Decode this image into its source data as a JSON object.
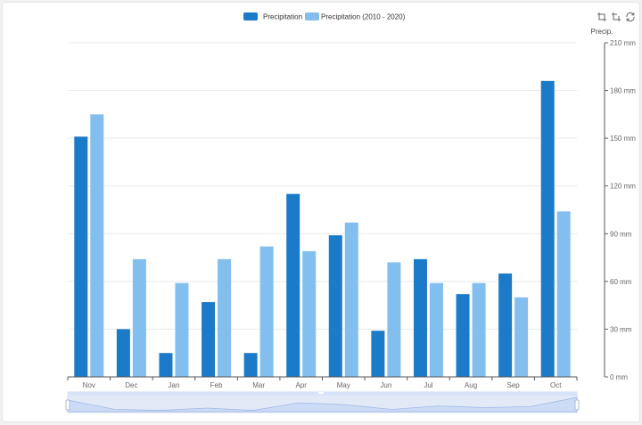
{
  "chart_data": {
    "type": "bar",
    "categories": [
      "Nov",
      "Dec",
      "Jan",
      "Feb",
      "Mar",
      "Apr",
      "May",
      "Jun",
      "Jul",
      "Aug",
      "Sep",
      "Oct"
    ],
    "series": [
      {
        "name": "Precipitation",
        "color": "#1b7bc8",
        "values": [
          151,
          30,
          15,
          47,
          15,
          115,
          89,
          29,
          74,
          52,
          65,
          186
        ]
      },
      {
        "name": "Precipitation (2010 - 2020)",
        "color": "#82bfee",
        "values": [
          165,
          74,
          59,
          74,
          82,
          79,
          97,
          72,
          59,
          59,
          50,
          104
        ]
      }
    ],
    "ylabel": "Precip.",
    "y_ticks": [
      "0 mm",
      "30 mm",
      "60 mm",
      "90 mm",
      "120 mm",
      "150 mm",
      "180 mm",
      "210 mm"
    ],
    "y_tick_values": [
      0,
      30,
      60,
      90,
      120,
      150,
      180,
      210
    ],
    "ylim": [
      0,
      210
    ],
    "y_axis_side": "right",
    "grid": true,
    "legend_position": "top-center"
  },
  "toolbox": {
    "icons": [
      "zoom-icon",
      "zoom-reset-icon",
      "restore-icon"
    ]
  },
  "data_zoom": {
    "range_start_percent": 0,
    "range_end_percent": 100
  }
}
